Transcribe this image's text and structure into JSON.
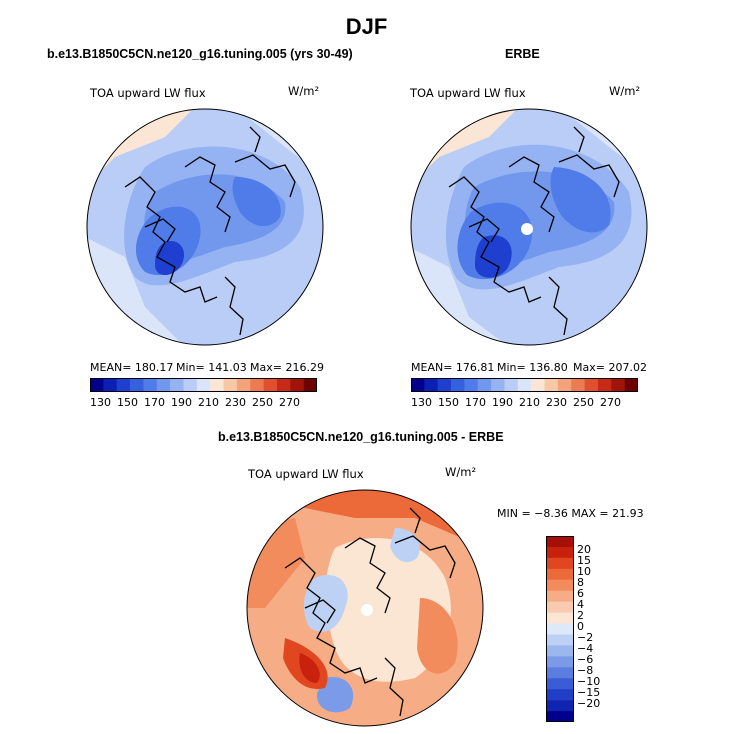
{
  "season_title": "DJF",
  "panels": [
    {
      "title": "b.e13.B1850C5CN.ne120_g16.tuning.005 (yrs 30-49)",
      "field": "TOA upward LW flux",
      "units": "W/m²",
      "mean_label": "MEAN= 180.17",
      "min_label": "Min= 141.03",
      "max_label": "Max= 216.29"
    },
    {
      "title": "ERBE",
      "field": "TOA upward LW flux",
      "units": "W/m²",
      "mean_label": "MEAN= 176.81",
      "min_label": "Min= 136.80",
      "max_label": "Max= 207.02"
    }
  ],
  "abs_colorbar": {
    "colors": [
      "#00008c",
      "#0a1fb4",
      "#1e3fd0",
      "#3560e0",
      "#4f7ce8",
      "#7298ee",
      "#95b3f2",
      "#b9cdf6",
      "#dae5f9",
      "#fbe6d5",
      "#f8c7a6",
      "#f3a27a",
      "#ec7a52",
      "#e0502f",
      "#c82a18",
      "#a0140a",
      "#6e0000"
    ],
    "tick_labels": [
      "130",
      "150",
      "170",
      "190",
      "210",
      "230",
      "250",
      "270"
    ]
  },
  "diff_panel": {
    "title": "b.e13.B1850C5CN.ne120_g16.tuning.005 - ERBE",
    "field": "TOA upward LW flux",
    "units": "W/m²",
    "minmax_label": "MIN =  −8.36 MAX =  21.93"
  },
  "diff_colorbar": {
    "colors": [
      "#a50f05",
      "#c8220f",
      "#e0461f",
      "#ec6a3a",
      "#f28c5c",
      "#f6ad85",
      "#f8cbb0",
      "#fbe5d3",
      "#dde9f8",
      "#bcd1f4",
      "#9bb7ee",
      "#7b9be8",
      "#5a7de0",
      "#3a5dd6",
      "#213fc6",
      "#0f25b0",
      "#00008c"
    ],
    "tick_labels": [
      "20",
      "15",
      "10",
      "8",
      "6",
      "4",
      "2",
      "0",
      "−2",
      "−4",
      "−6",
      "−8",
      "−10",
      "−15",
      "−20"
    ]
  }
}
